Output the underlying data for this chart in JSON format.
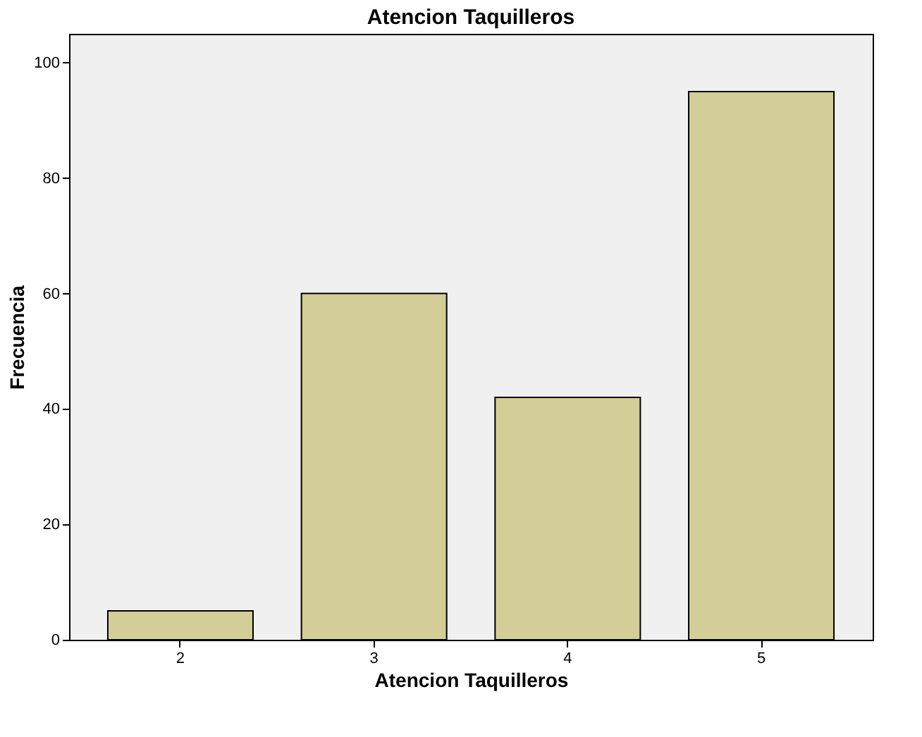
{
  "chart_data": {
    "type": "bar",
    "title": "Atencion Taquilleros",
    "xlabel": "Atencion Taquilleros",
    "ylabel": "Frecuencia",
    "categories": [
      "2",
      "3",
      "4",
      "5"
    ],
    "values": [
      5,
      60,
      42,
      95
    ],
    "color": "#d3ce97",
    "ylim": [
      0,
      105
    ],
    "yticks": [
      0,
      20,
      40,
      60,
      80,
      100
    ],
    "grid": false
  }
}
